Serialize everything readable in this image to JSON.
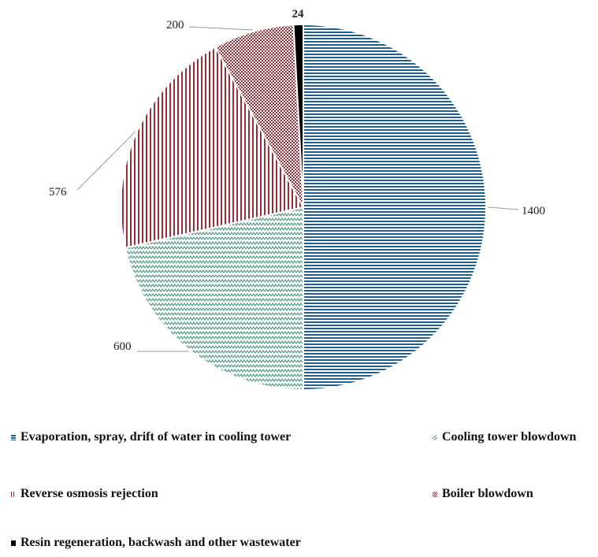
{
  "chart_data": {
    "type": "pie",
    "title": "",
    "slices": [
      {
        "label": "Evaporation, spray, drift of water in cooling tower",
        "value": 1400,
        "data_label": "1400",
        "color": "#1f5f8b",
        "pattern": "horizontal-lines"
      },
      {
        "label": "Cooling tower blowdown",
        "value": 600,
        "data_label": "600",
        "color": "#5b9e8c",
        "pattern": "zigzag"
      },
      {
        "label": "Reverse osmosis rejection",
        "value": 576,
        "data_label": "576",
        "color": "#9b2d35",
        "pattern": "vertical-lines"
      },
      {
        "label": "Boiler blowdown",
        "value": 200,
        "data_label": "200",
        "color": "#9b2d35",
        "pattern": "checker"
      },
      {
        "label": "Resin regeneration, backwash and other wastewater",
        "value": 24,
        "data_label": "24",
        "color": "#000000",
        "pattern": "solid"
      }
    ],
    "legend_position": "bottom"
  }
}
